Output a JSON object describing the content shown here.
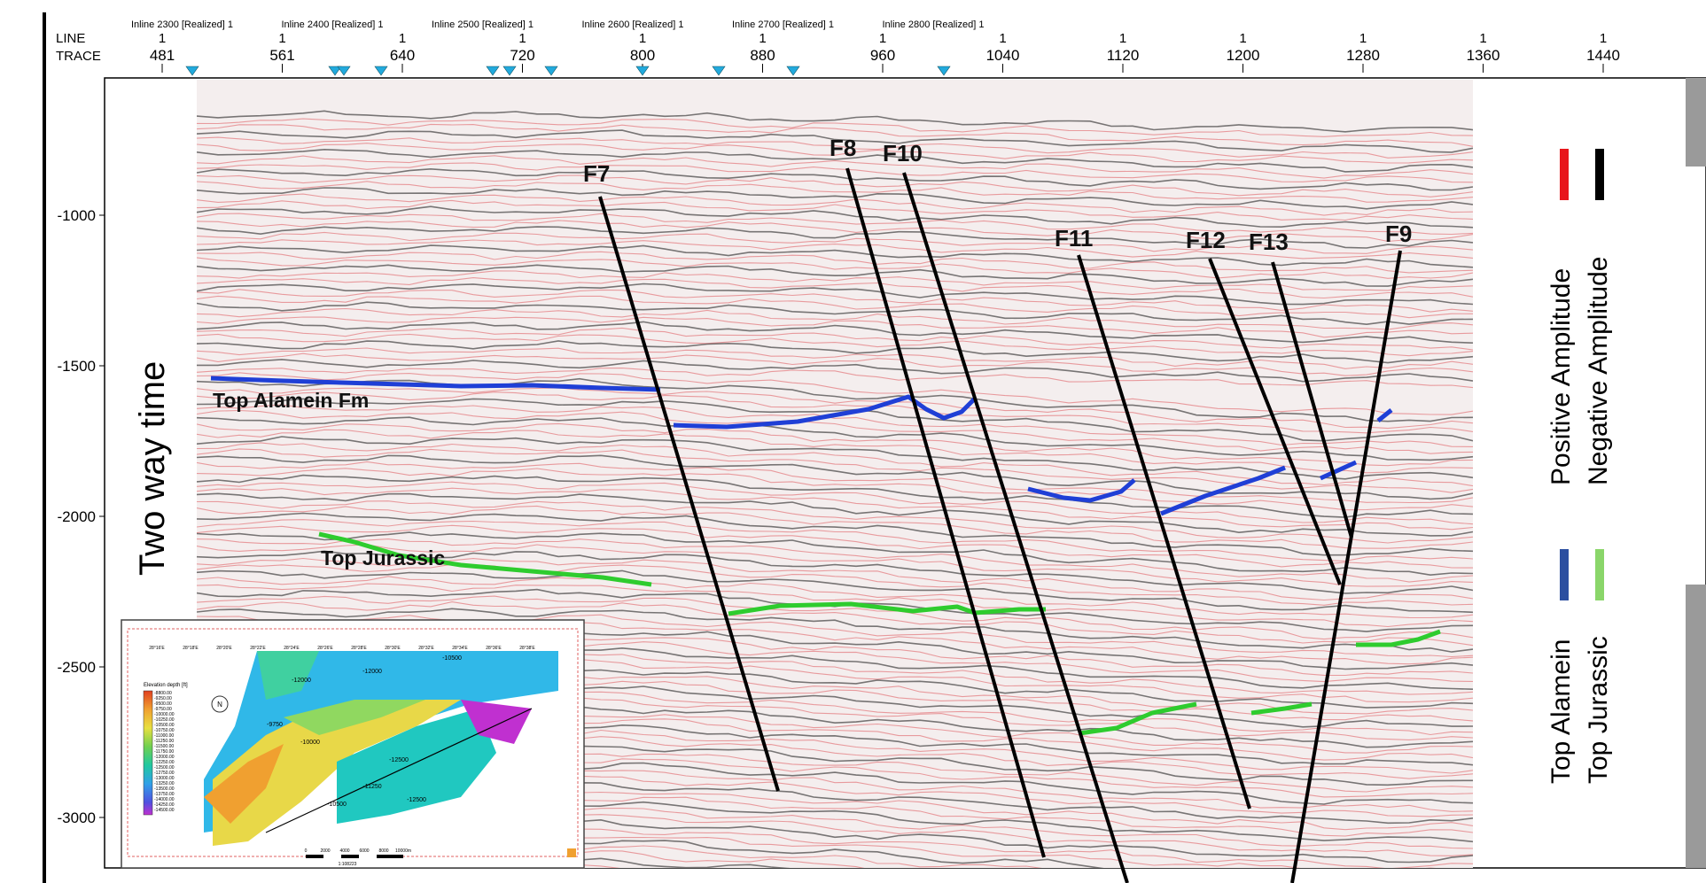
{
  "header": {
    "line_label": "LINE",
    "trace_label": "TRACE",
    "inlines": [
      "Inline 2300 [Realized] 1",
      "Inline 2400 [Realized] 1",
      "Inline 2500 [Realized] 1",
      "Inline 2600 [Realized] 1",
      "Inline 2700 [Realized] 1",
      "Inline 2800 [Realized] 1"
    ],
    "line_ticks": [
      "1",
      "1",
      "1",
      "1",
      "1",
      "1",
      "1",
      "1",
      "1",
      "1",
      "1",
      "1",
      "1"
    ],
    "trace_ticks": [
      "481",
      "561",
      "640",
      "720",
      "800",
      "880",
      "960",
      "1040",
      "1120",
      "1200",
      "1280",
      "1360",
      "1440"
    ]
  },
  "y_axis": {
    "title": "Two way time",
    "ticks": [
      "-1000",
      "-1500",
      "-2000",
      "-2500",
      "-3000"
    ]
  },
  "faults": [
    "F7",
    "F8",
    "F10",
    "F11",
    "F12",
    "F13",
    "F9"
  ],
  "horizons": {
    "top_alamein": "Top Alamein Fm",
    "top_jurassic": "Top Jurassic"
  },
  "legend": {
    "amplitude": [
      {
        "label": "Positive Amplitude",
        "color": "#e8151b"
      },
      {
        "label": "Negative Amplitude",
        "color": "#000000"
      }
    ],
    "horizons": [
      {
        "label": "Top Alamein",
        "color": "#2c4fa0"
      },
      {
        "label": "Top Jurassic",
        "color": "#8ad66a"
      }
    ]
  },
  "inset_map": {
    "legend_title": "Elevation depth [ft]",
    "legend_values": [
      "-8800.00",
      "-9250.00",
      "-9500.00",
      "-9750.00",
      "-10000.00",
      "-10250.00",
      "-10500.00",
      "-10750.00",
      "-11000.00",
      "-11250.00",
      "-11500.00",
      "-11750.00",
      "-12000.00",
      "-12250.00",
      "-12500.00",
      "-12750.00",
      "-13000.00",
      "-13250.00",
      "-13500.00",
      "-13750.00",
      "-14000.00",
      "-14250.00",
      "-14500.00"
    ],
    "top_ticks": [
      "28°16'E",
      "28°18'E",
      "28°20'E",
      "28°22'E",
      "28°24'E",
      "28°26'E",
      "28°28'E",
      "28°30'E",
      "28°32'E",
      "28°34'E",
      "28°36'E",
      "28°38'E"
    ],
    "contour_labels": [
      "-12000",
      "-10500",
      "-12000",
      "-9750",
      "-10000",
      "-12500",
      "-11250",
      "-10500",
      "-12500"
    ],
    "scale_labels": [
      "0",
      "2000",
      "4000",
      "6000",
      "8000",
      "10000m"
    ],
    "scale_ratio": "1:108223",
    "compass": "N"
  },
  "colors": {
    "alamein": "#1f3fd6",
    "jurassic": "#2ecc2e",
    "positive": "#d9343a",
    "negative": "#111111",
    "marker": "#22aadd"
  }
}
